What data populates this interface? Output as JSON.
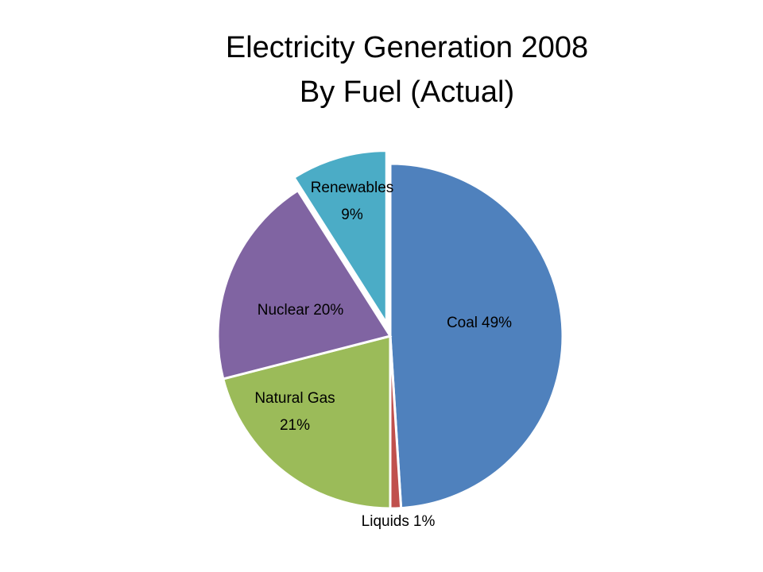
{
  "chart_data": {
    "type": "pie",
    "title": [
      "Electricity Generation 2008",
      "By Fuel (Actual)"
    ],
    "categories": [
      "Coal",
      "Liquids",
      "Natural Gas",
      "Nuclear",
      "Renewables"
    ],
    "values": [
      49,
      1,
      21,
      20,
      9
    ],
    "value_labels": [
      "49%",
      "1%",
      "21%",
      "20%",
      "9%"
    ],
    "colors": [
      "#4f81bd",
      "#c0504d",
      "#9bbb59",
      "#8064a2",
      "#4bacc6"
    ],
    "exploded": [
      "Renewables"
    ]
  }
}
